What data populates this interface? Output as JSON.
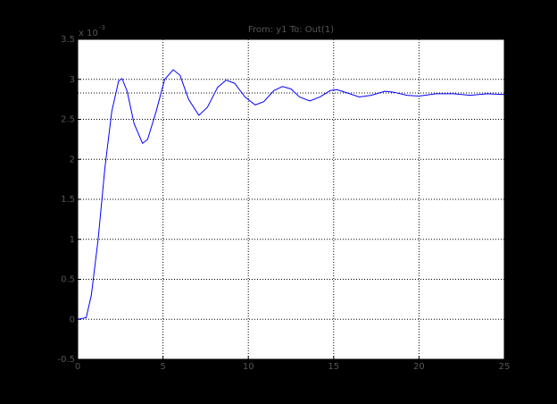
{
  "chart_data": {
    "type": "line",
    "title": "From: y1  To: Out(1)",
    "y_multiplier": {
      "base": "x 10",
      "exponent": "-3"
    },
    "x": [
      0,
      0.5,
      0.8,
      1.2,
      1.6,
      2.0,
      2.4,
      2.6,
      2.9,
      3.3,
      3.8,
      4.1,
      4.6,
      5.1,
      5.6,
      6.0,
      6.5,
      7.1,
      7.6,
      8.2,
      8.7,
      9.2,
      9.8,
      10.4,
      10.9,
      11.5,
      12.0,
      12.5,
      13.0,
      13.6,
      14.2,
      14.8,
      15.2,
      15.8,
      16.5,
      17.2,
      18.0,
      18.5,
      19.3,
      20.0,
      21.0,
      22.0,
      23.0,
      24.0,
      25.0
    ],
    "series": [
      {
        "color": "#0000ff",
        "values": [
          0,
          0.02,
          0.3,
          1.0,
          1.9,
          2.6,
          2.98,
          3.01,
          2.85,
          2.45,
          2.2,
          2.25,
          2.6,
          3.0,
          3.12,
          3.05,
          2.75,
          2.55,
          2.65,
          2.9,
          2.99,
          2.95,
          2.78,
          2.68,
          2.72,
          2.86,
          2.91,
          2.88,
          2.78,
          2.73,
          2.78,
          2.86,
          2.87,
          2.83,
          2.78,
          2.8,
          2.85,
          2.84,
          2.8,
          2.79,
          2.82,
          2.82,
          2.8,
          2.82,
          2.81
        ]
      }
    ],
    "steady_state": 2.83,
    "xlim": [
      0,
      25
    ],
    "xticks": [
      0,
      5,
      10,
      15,
      20,
      25
    ],
    "ylim": [
      -0.5,
      3.5
    ],
    "yticks": [
      -0.5,
      0,
      0.5,
      1,
      1.5,
      2,
      2.5,
      3,
      3.5
    ],
    "grid": true
  }
}
